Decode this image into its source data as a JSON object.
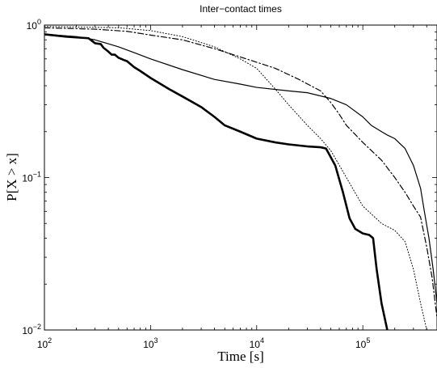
{
  "chart_data": {
    "type": "line",
    "title": "Inter−contact times",
    "xlabel": "Time [s]",
    "ylabel": "P[X > x]",
    "xscale": "log",
    "yscale": "log",
    "xlim": [
      100,
      500000
    ],
    "ylim": [
      0.01,
      1
    ],
    "grid": false,
    "legend": "none",
    "x_ticks": [
      {
        "base": "10",
        "exp": "2"
      },
      {
        "base": "10",
        "exp": "3"
      },
      {
        "base": "10",
        "exp": "4"
      },
      {
        "base": "10",
        "exp": "5"
      }
    ],
    "y_ticks": [
      {
        "base": "10",
        "exp": "0"
      },
      {
        "base": "10",
        "exp": "−1"
      },
      {
        "base": "10",
        "exp": "−2"
      }
    ],
    "series": [
      {
        "style": "solid-thick",
        "points": [
          [
            100,
            0.87
          ],
          [
            160,
            0.84
          ],
          [
            200,
            0.83
          ],
          [
            260,
            0.82
          ],
          [
            300,
            0.76
          ],
          [
            340,
            0.75
          ],
          [
            360,
            0.71
          ],
          [
            400,
            0.67
          ],
          [
            430,
            0.64
          ],
          [
            460,
            0.64
          ],
          [
            500,
            0.61
          ],
          [
            560,
            0.59
          ],
          [
            600,
            0.58
          ],
          [
            700,
            0.53
          ],
          [
            800,
            0.5
          ],
          [
            1000,
            0.45
          ],
          [
            1500,
            0.38
          ],
          [
            2000,
            0.34
          ],
          [
            3000,
            0.29
          ],
          [
            4000,
            0.25
          ],
          [
            5000,
            0.22
          ],
          [
            7000,
            0.2
          ],
          [
            10000,
            0.18
          ],
          [
            15000,
            0.17
          ],
          [
            20000,
            0.165
          ],
          [
            30000,
            0.16
          ],
          [
            40000,
            0.158
          ],
          [
            45000,
            0.155
          ],
          [
            55000,
            0.12
          ],
          [
            65000,
            0.08
          ],
          [
            75000,
            0.054
          ],
          [
            85000,
            0.046
          ],
          [
            100000,
            0.043
          ],
          [
            115000,
            0.042
          ],
          [
            125000,
            0.04
          ],
          [
            135000,
            0.025
          ],
          [
            150000,
            0.015
          ],
          [
            170000,
            0.01
          ]
        ]
      },
      {
        "style": "solid-thin",
        "points": [
          [
            100,
            0.87
          ],
          [
            200,
            0.84
          ],
          [
            300,
            0.8
          ],
          [
            500,
            0.72
          ],
          [
            700,
            0.66
          ],
          [
            1000,
            0.6
          ],
          [
            2000,
            0.51
          ],
          [
            4000,
            0.44
          ],
          [
            7000,
            0.41
          ],
          [
            10000,
            0.39
          ],
          [
            20000,
            0.37
          ],
          [
            30000,
            0.36
          ],
          [
            50000,
            0.33
          ],
          [
            70000,
            0.3
          ],
          [
            100000,
            0.25
          ],
          [
            120000,
            0.22
          ],
          [
            150000,
            0.2
          ],
          [
            170000,
            0.19
          ],
          [
            200000,
            0.18
          ],
          [
            250000,
            0.155
          ],
          [
            300000,
            0.12
          ],
          [
            350000,
            0.085
          ],
          [
            380000,
            0.06
          ],
          [
            420000,
            0.04
          ],
          [
            460000,
            0.025
          ],
          [
            490000,
            0.017
          ],
          [
            500000,
            0.015
          ]
        ]
      },
      {
        "style": "dash-dot",
        "points": [
          [
            100,
            0.96
          ],
          [
            300,
            0.94
          ],
          [
            600,
            0.91
          ],
          [
            1000,
            0.86
          ],
          [
            2000,
            0.8
          ],
          [
            4000,
            0.7
          ],
          [
            8000,
            0.6
          ],
          [
            15000,
            0.52
          ],
          [
            25000,
            0.44
          ],
          [
            40000,
            0.37
          ],
          [
            50000,
            0.31
          ],
          [
            60000,
            0.26
          ],
          [
            70000,
            0.22
          ],
          [
            100000,
            0.17
          ],
          [
            150000,
            0.13
          ],
          [
            200000,
            0.1
          ],
          [
            250000,
            0.08
          ],
          [
            300000,
            0.065
          ],
          [
            350000,
            0.055
          ],
          [
            400000,
            0.035
          ],
          [
            450000,
            0.022
          ],
          [
            500000,
            0.012
          ]
        ]
      },
      {
        "style": "dotted",
        "points": [
          [
            100,
            0.98
          ],
          [
            500,
            0.96
          ],
          [
            1000,
            0.92
          ],
          [
            2000,
            0.84
          ],
          [
            4000,
            0.72
          ],
          [
            7000,
            0.6
          ],
          [
            10000,
            0.52
          ],
          [
            15000,
            0.38
          ],
          [
            20000,
            0.3
          ],
          [
            30000,
            0.22
          ],
          [
            40000,
            0.18
          ],
          [
            50000,
            0.15
          ],
          [
            70000,
            0.1
          ],
          [
            100000,
            0.065
          ],
          [
            150000,
            0.05
          ],
          [
            200000,
            0.045
          ],
          [
            250000,
            0.038
          ],
          [
            300000,
            0.025
          ],
          [
            350000,
            0.015
          ],
          [
            400000,
            0.01
          ]
        ]
      }
    ]
  }
}
